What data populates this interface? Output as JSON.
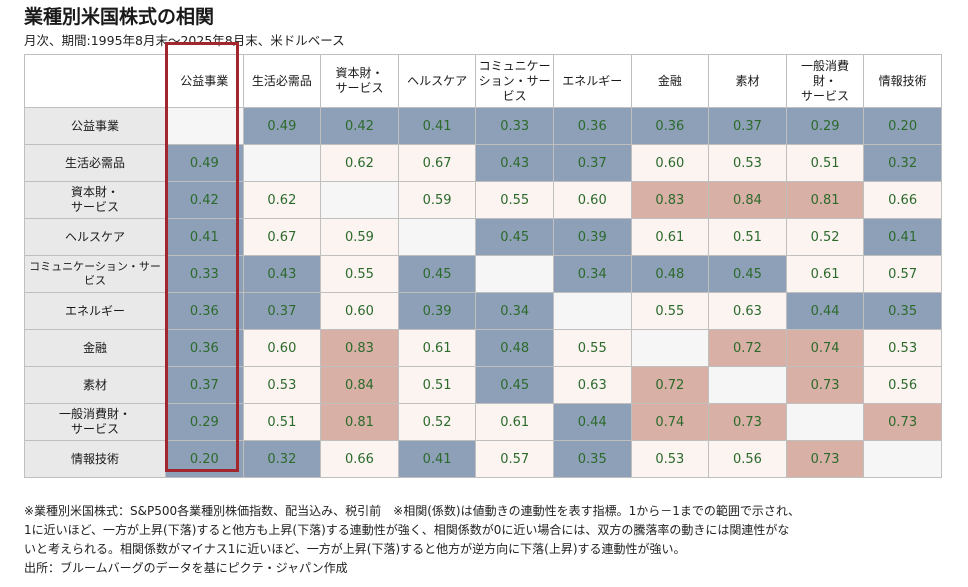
{
  "title": "業種別米国株式の相関",
  "subtitle": "月次、期間:1995年8月末～2025年8月末、米ドルベース",
  "colors": {
    "low": "#8ea0b8",
    "mid": "#fcf4f1",
    "high": "#d9b0a6",
    "self": "#f6f6f6",
    "highlight": "#a2262e",
    "value_text": "#2c6a2c"
  },
  "highlighted_sector": "公益事業",
  "chart_data": {
    "type": "heatmap",
    "columns": [
      "公益事業",
      "生活必需品",
      "資本財・\nサービス",
      "ヘルスケア",
      "コミュニケー\nション・サー\nビス",
      "エネルギー",
      "金融",
      "素材",
      "一般消費\n財・\nサービス",
      "情報技術"
    ],
    "rows": [
      {
        "label": "公益事業",
        "values": [
          null,
          0.49,
          0.42,
          0.41,
          0.33,
          0.36,
          0.36,
          0.37,
          0.29,
          0.2
        ]
      },
      {
        "label": "生活必需品",
        "values": [
          0.49,
          null,
          0.62,
          0.67,
          0.43,
          0.37,
          0.6,
          0.53,
          0.51,
          0.32
        ]
      },
      {
        "label": "資本財・\nサービス",
        "values": [
          0.42,
          0.62,
          null,
          0.59,
          0.55,
          0.6,
          0.83,
          0.84,
          0.81,
          0.66
        ]
      },
      {
        "label": "ヘルスケア",
        "values": [
          0.41,
          0.67,
          0.59,
          null,
          0.45,
          0.39,
          0.61,
          0.51,
          0.52,
          0.41
        ]
      },
      {
        "label": "コミュニケーション・サービス",
        "values": [
          0.33,
          0.43,
          0.55,
          0.45,
          null,
          0.34,
          0.48,
          0.45,
          0.61,
          0.57
        ]
      },
      {
        "label": "エネルギー",
        "values": [
          0.36,
          0.37,
          0.6,
          0.39,
          0.34,
          null,
          0.55,
          0.63,
          0.44,
          0.35
        ]
      },
      {
        "label": "金融",
        "values": [
          0.36,
          0.6,
          0.83,
          0.61,
          0.48,
          0.55,
          null,
          0.72,
          0.74,
          0.53
        ]
      },
      {
        "label": "素材",
        "values": [
          0.37,
          0.53,
          0.84,
          0.51,
          0.45,
          0.63,
          0.72,
          null,
          0.73,
          0.56
        ]
      },
      {
        "label": "一般消費財・\nサービス",
        "values": [
          0.29,
          0.51,
          0.81,
          0.52,
          0.61,
          0.44,
          0.74,
          0.73,
          null,
          0.73
        ]
      },
      {
        "label": "情報技術",
        "values": [
          0.2,
          0.32,
          0.66,
          0.41,
          0.57,
          0.35,
          0.53,
          0.56,
          0.73,
          null
        ]
      }
    ]
  },
  "notes": [
    "※業種別米国株式：S&P500各業種別株価指数、配当込み、税引前　※相関(係数)は値動きの連動性を表す指標。1から－1までの範囲で示され、",
    "1に近いほど、一方が上昇(下落)すると他方も上昇(下落)する連動性が強く、相関係数が0に近い場合には、双方の騰落率の動きには関連性がな",
    "いと考えられる。相関係数がマイナス1に近いほど、一方が上昇(下落)すると他方が逆方向に下落(上昇)する連動性が強い。",
    "出所：ブルームバーグのデータを基にピクテ・ジャパン作成"
  ]
}
